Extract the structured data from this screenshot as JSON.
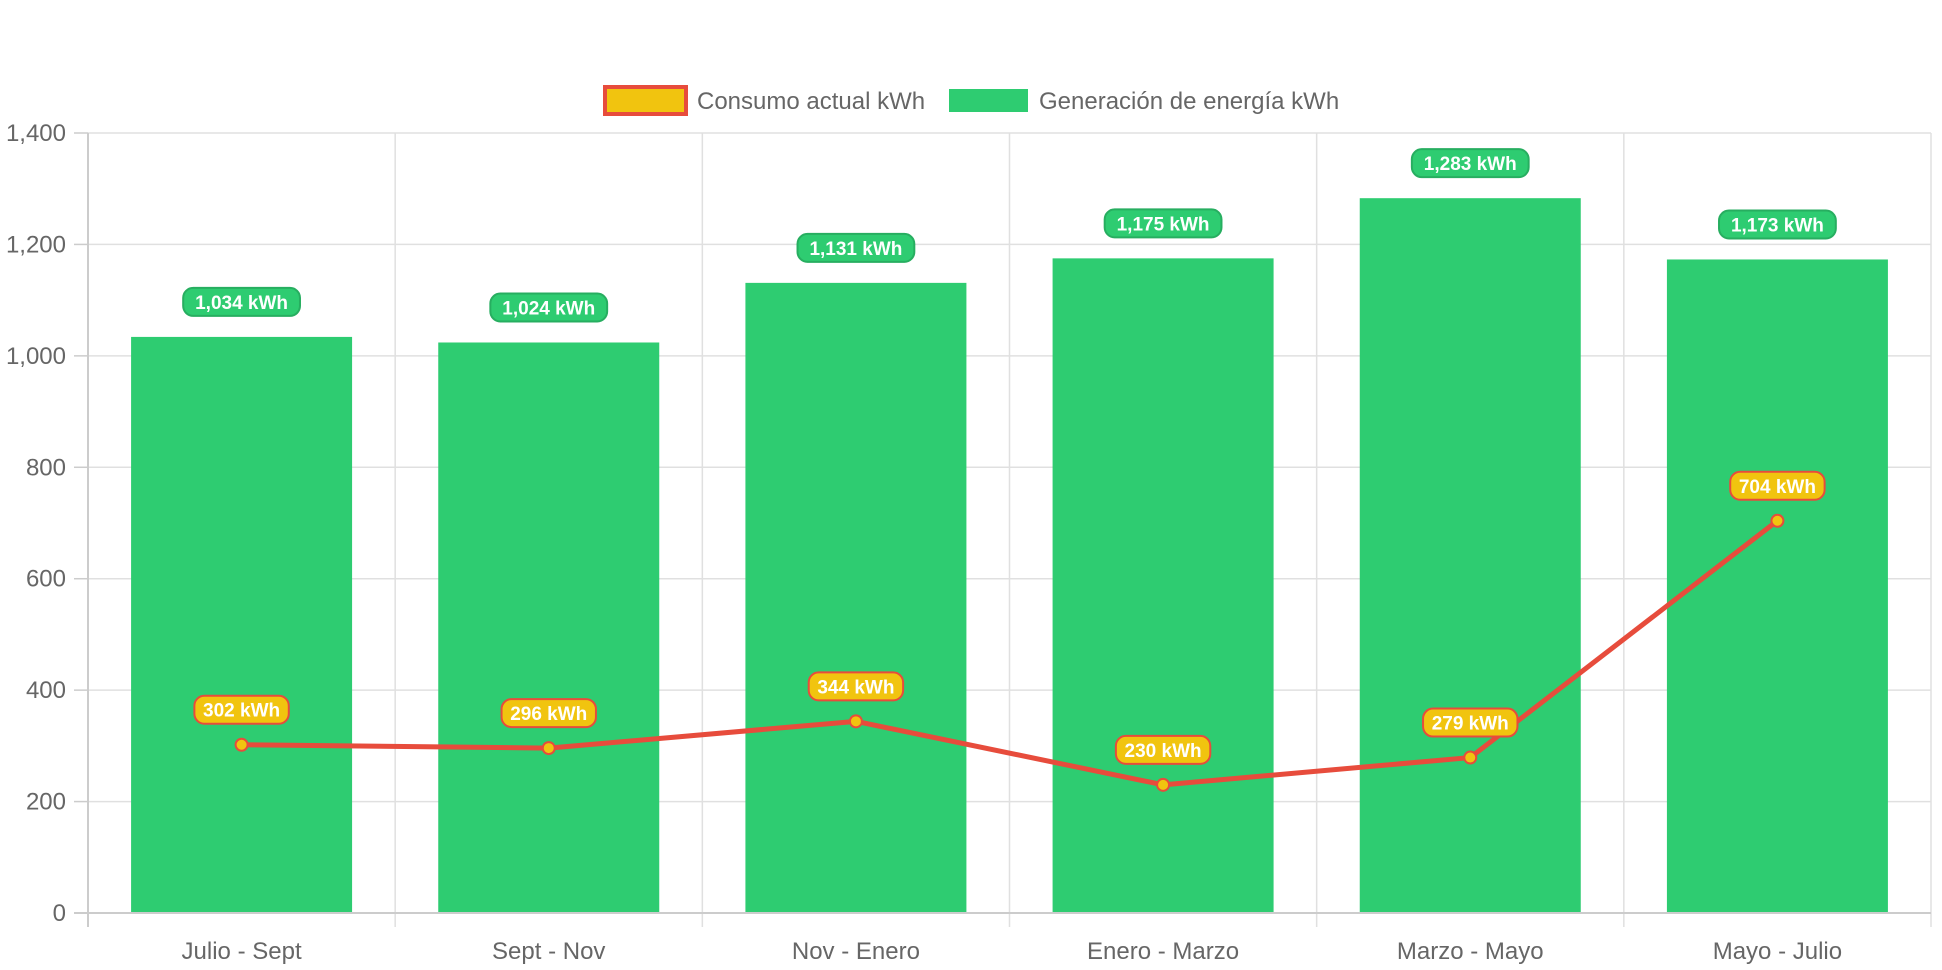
{
  "chart_data": {
    "type": "bar",
    "categories": [
      "Julio - Sept",
      "Sept - Nov",
      "Nov - Enero",
      "Enero - Marzo",
      "Marzo - Mayo",
      "Mayo - Julio"
    ],
    "series": [
      {
        "name": "Consumo actual kWh",
        "type": "line",
        "values": [
          302,
          296,
          344,
          230,
          279,
          704
        ],
        "labels": [
          "302 kWh",
          "296 kWh",
          "344 kWh",
          "230 kWh",
          "279 kWh",
          "704 kWh"
        ],
        "color": "#e74c3c",
        "fill_color": "#f1c40f"
      },
      {
        "name": "Generación de energía kWh",
        "type": "bar",
        "values": [
          1034,
          1024,
          1131,
          1175,
          1283,
          1173
        ],
        "labels": [
          "1,034 kWh",
          "1,024 kWh",
          "1,131 kWh",
          "1,175 kWh",
          "1,283 kWh",
          "1,173 kWh"
        ],
        "color": "#2ecc71",
        "label_border_color": "#27ae60"
      }
    ],
    "ylim": [
      0,
      1400
    ],
    "yticks": [
      "0",
      "200",
      "400",
      "600",
      "800",
      "1,000",
      "1,200",
      "1,400"
    ],
    "grid": true,
    "legend_position": "top"
  }
}
